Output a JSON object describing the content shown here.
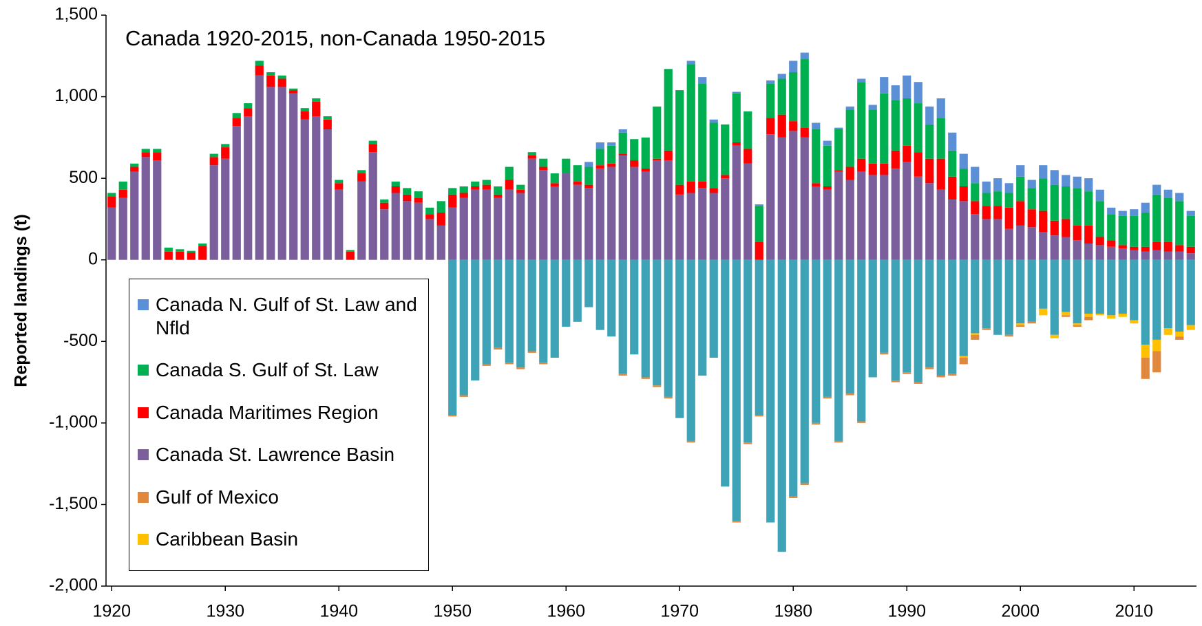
{
  "chart_data": {
    "type": "stacked_bar",
    "annotation": "Canada 1920-2015, non-Canada 1950-2015",
    "y_label": "Reported landings (t)",
    "x": [
      1920,
      1921,
      1922,
      1923,
      1924,
      1925,
      1926,
      1927,
      1928,
      1929,
      1930,
      1931,
      1932,
      1933,
      1934,
      1935,
      1936,
      1937,
      1938,
      1939,
      1940,
      1941,
      1942,
      1943,
      1944,
      1945,
      1946,
      1947,
      1948,
      1949,
      1950,
      1951,
      1952,
      1953,
      1954,
      1955,
      1956,
      1957,
      1958,
      1959,
      1960,
      1961,
      1962,
      1963,
      1964,
      1965,
      1966,
      1967,
      1968,
      1969,
      1970,
      1971,
      1972,
      1973,
      1974,
      1975,
      1976,
      1977,
      1978,
      1979,
      1980,
      1981,
      1982,
      1983,
      1984,
      1985,
      1986,
      1987,
      1988,
      1989,
      1990,
      1991,
      1992,
      1993,
      1994,
      1995,
      1996,
      1997,
      1998,
      1999,
      2000,
      2001,
      2002,
      2003,
      2004,
      2005,
      2006,
      2007,
      2008,
      2009,
      2010,
      2011,
      2012,
      2013,
      2014,
      2015
    ],
    "xlim": [
      1919.5,
      2015.5
    ],
    "xticks": [
      1920,
      1930,
      1940,
      1950,
      1960,
      1970,
      1980,
      1990,
      2000,
      2010
    ],
    "ylim": [
      -2000,
      1500
    ],
    "yticks": [
      {
        "value": -2000,
        "label": "-2,000"
      },
      {
        "value": -1500,
        "label": "-1,500"
      },
      {
        "value": -1000,
        "label": "-1,000"
      },
      -500,
      0,
      500,
      {
        "value": 1000,
        "label": "1,000"
      },
      {
        "value": 1500,
        "label": "1,500"
      }
    ],
    "series": [
      {
        "name": "Canada N. Gulf of St. Law and Nfld",
        "color": "#5b8fd6",
        "values": [
          0,
          0,
          0,
          0,
          0,
          0,
          0,
          0,
          0,
          0,
          0,
          0,
          0,
          0,
          0,
          0,
          0,
          0,
          0,
          0,
          0,
          0,
          0,
          0,
          0,
          0,
          0,
          0,
          0,
          0,
          0,
          0,
          0,
          0,
          0,
          0,
          0,
          0,
          0,
          0,
          0,
          0,
          30,
          40,
          20,
          20,
          0,
          0,
          0,
          0,
          0,
          20,
          40,
          20,
          0,
          10,
          0,
          10,
          20,
          30,
          70,
          40,
          40,
          30,
          10,
          20,
          20,
          30,
          100,
          90,
          140,
          130,
          110,
          120,
          110,
          90,
          100,
          70,
          80,
          60,
          70,
          50,
          80,
          90,
          70,
          70,
          80,
          70,
          40,
          30,
          40,
          60,
          60,
          50,
          50,
          30
        ]
      },
      {
        "name": "Canada S. Gulf of St. Law",
        "color": "#00b050",
        "values": [
          20,
          50,
          20,
          20,
          20,
          25,
          15,
          10,
          15,
          20,
          20,
          30,
          30,
          30,
          20,
          20,
          10,
          20,
          20,
          20,
          20,
          10,
          20,
          20,
          20,
          30,
          40,
          40,
          40,
          70,
          40,
          40,
          30,
          30,
          50,
          80,
          30,
          20,
          50,
          60,
          90,
          100,
          110,
          100,
          110,
          130,
          130,
          190,
          320,
          500,
          580,
          720,
          600,
          400,
          310,
          300,
          230,
          220,
          210,
          220,
          300,
          420,
          330,
          250,
          250,
          350,
          470,
          330,
          430,
          310,
          290,
          300,
          210,
          250,
          160,
          110,
          110,
          80,
          90,
          90,
          150,
          130,
          200,
          220,
          200,
          230,
          210,
          220,
          160,
          180,
          190,
          210,
          290,
          270,
          270,
          190
        ]
      },
      {
        "name": "Canada Maritimes Region",
        "color": "#ff0000",
        "values": [
          70,
          50,
          30,
          30,
          50,
          50,
          50,
          45,
          85,
          50,
          70,
          50,
          50,
          60,
          70,
          50,
          20,
          50,
          90,
          60,
          40,
          50,
          50,
          50,
          40,
          40,
          40,
          30,
          30,
          80,
          80,
          30,
          20,
          30,
          20,
          60,
          20,
          20,
          20,
          20,
          0,
          20,
          20,
          20,
          20,
          10,
          40,
          20,
          10,
          60,
          60,
          70,
          40,
          30,
          20,
          20,
          90,
          110,
          100,
          140,
          60,
          60,
          20,
          20,
          10,
          80,
          80,
          70,
          70,
          110,
          100,
          150,
          150,
          190,
          140,
          90,
          80,
          80,
          80,
          130,
          150,
          110,
          130,
          90,
          110,
          90,
          110,
          50,
          40,
          20,
          20,
          30,
          50,
          60,
          40,
          40
        ]
      },
      {
        "name": "Canada St. Lawrence Basin",
        "color": "#7b5e9c",
        "values": [
          320,
          380,
          540,
          630,
          610,
          0,
          0,
          0,
          0,
          580,
          620,
          820,
          880,
          1130,
          1060,
          1060,
          1020,
          860,
          880,
          800,
          430,
          0,
          480,
          660,
          310,
          410,
          360,
          350,
          250,
          210,
          320,
          380,
          430,
          430,
          380,
          430,
          410,
          620,
          550,
          450,
          530,
          460,
          440,
          560,
          570,
          640,
          570,
          540,
          610,
          610,
          400,
          410,
          440,
          410,
          500,
          700,
          590,
          0,
          770,
          750,
          790,
          750,
          450,
          430,
          540,
          490,
          540,
          520,
          520,
          560,
          600,
          510,
          470,
          430,
          370,
          360,
          280,
          250,
          250,
          190,
          210,
          200,
          170,
          150,
          140,
          120,
          100,
          90,
          80,
          70,
          60,
          50,
          60,
          50,
          50,
          40
        ]
      },
      {
        "name": "Gulf of Mexico",
        "color": "#e0883e",
        "values": [
          null,
          null,
          null,
          null,
          null,
          null,
          null,
          null,
          null,
          null,
          null,
          null,
          null,
          null,
          null,
          null,
          null,
          null,
          null,
          null,
          null,
          null,
          null,
          null,
          null,
          null,
          null,
          null,
          null,
          null,
          -10,
          -10,
          0,
          -10,
          -10,
          -10,
          -10,
          -10,
          -10,
          0,
          0,
          0,
          0,
          0,
          0,
          -10,
          0,
          -10,
          -10,
          -10,
          0,
          -10,
          0,
          0,
          0,
          -10,
          -10,
          -10,
          0,
          0,
          -10,
          -10,
          -10,
          -10,
          -10,
          -10,
          -10,
          0,
          -10,
          -10,
          -10,
          -10,
          -10,
          -10,
          -10,
          -40,
          -30,
          -10,
          0,
          -10,
          -10,
          -10,
          0,
          0,
          -10,
          -10,
          -20,
          0,
          0,
          0,
          0,
          -130,
          -130,
          0,
          -20,
          0
        ]
      },
      {
        "name": "Caribbean Basin",
        "color": "#ffc000",
        "values": [
          null,
          null,
          null,
          null,
          null,
          null,
          null,
          null,
          null,
          null,
          null,
          null,
          null,
          null,
          null,
          null,
          null,
          null,
          null,
          null,
          null,
          null,
          null,
          null,
          null,
          null,
          null,
          null,
          null,
          null,
          0,
          0,
          0,
          0,
          0,
          0,
          0,
          0,
          0,
          0,
          0,
          0,
          0,
          0,
          0,
          0,
          0,
          0,
          0,
          0,
          0,
          0,
          0,
          0,
          0,
          0,
          0,
          0,
          0,
          0,
          0,
          0,
          0,
          0,
          0,
          0,
          0,
          0,
          0,
          0,
          0,
          0,
          0,
          0,
          0,
          -10,
          -10,
          0,
          0,
          0,
          -10,
          0,
          -40,
          -20,
          -20,
          -10,
          -20,
          -10,
          -20,
          -20,
          -20,
          -80,
          -70,
          -40,
          -30,
          -30
        ]
      },
      {
        "color": "#3fa3b8",
        "values": [
          null,
          null,
          null,
          null,
          null,
          null,
          null,
          null,
          null,
          null,
          null,
          null,
          null,
          null,
          null,
          null,
          null,
          null,
          null,
          null,
          null,
          null,
          null,
          null,
          null,
          null,
          null,
          null,
          null,
          null,
          -950,
          -830,
          -740,
          -640,
          -540,
          -630,
          -660,
          -560,
          -630,
          -600,
          -410,
          -380,
          -290,
          -430,
          -470,
          -700,
          -580,
          -720,
          -770,
          -840,
          -970,
          -1110,
          -710,
          -600,
          -1390,
          -1600,
          -1120,
          -950,
          -1610,
          -1790,
          -1450,
          -1370,
          -1000,
          -840,
          -1110,
          -820,
          -990,
          -720,
          -570,
          -740,
          -690,
          -750,
          -660,
          -710,
          -700,
          -590,
          -450,
          -420,
          -460,
          -460,
          -390,
          -380,
          -300,
          -460,
          -320,
          -390,
          -330,
          -330,
          -340,
          -330,
          -370,
          -520,
          -490,
          -420,
          -440,
          -400
        ]
      }
    ]
  }
}
